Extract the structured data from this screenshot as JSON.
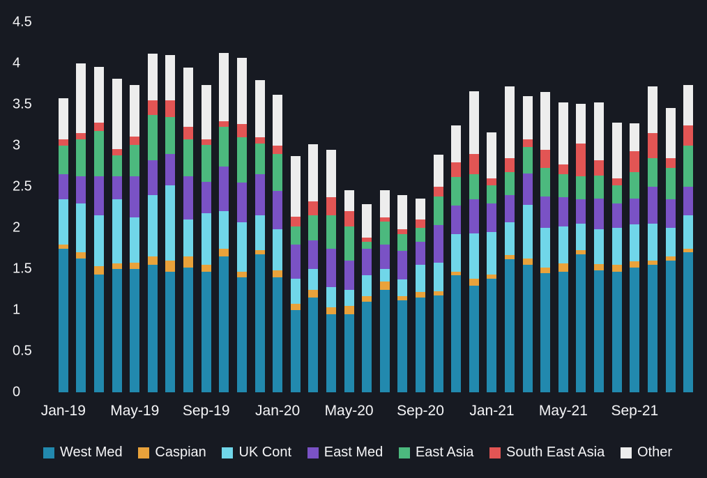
{
  "chart_data": {
    "type": "bar",
    "stacked": true,
    "title": "",
    "xlabel": "",
    "ylabel": "",
    "background": "#171a22",
    "text_color": "#f5f5f7",
    "grid": false,
    "legend_position": "bottom",
    "ylim": [
      0,
      4.5
    ],
    "yticks": [
      "0",
      "0.5",
      "1",
      "1.5",
      "2",
      "2.5",
      "3",
      "3.5",
      "4",
      "4.5"
    ],
    "xticks": [
      "Jan-19",
      "May-19",
      "Sep-19",
      "Jan-20",
      "May-20",
      "Sep-20",
      "Jan-21",
      "May-21",
      "Sep-21"
    ],
    "categories": [
      "Jan-19",
      "Feb-19",
      "Mar-19",
      "Apr-19",
      "May-19",
      "Jun-19",
      "Jul-19",
      "Aug-19",
      "Sep-19",
      "Oct-19",
      "Nov-19",
      "Dec-19",
      "Jan-20",
      "Feb-20",
      "Mar-20",
      "Apr-20",
      "May-20",
      "Jun-20",
      "Jul-20",
      "Aug-20",
      "Sep-20",
      "Oct-20",
      "Nov-20",
      "Dec-20",
      "Jan-21",
      "Feb-21",
      "Mar-21",
      "Apr-21",
      "May-21",
      "Jun-21",
      "Jul-21",
      "Aug-21",
      "Sep-21",
      "Oct-21",
      "Nov-21",
      "Dec-21"
    ],
    "series": [
      {
        "name": "West Med",
        "color": "#2289ae",
        "values": [
          1.75,
          1.63,
          1.43,
          1.5,
          1.5,
          1.55,
          1.47,
          1.52,
          1.47,
          1.65,
          1.4,
          1.68,
          1.4,
          1.0,
          1.15,
          0.95,
          0.95,
          1.1,
          1.25,
          1.12,
          1.15,
          1.18,
          1.42,
          1.3,
          1.38,
          1.62,
          1.55,
          1.45,
          1.47,
          1.68,
          1.48,
          1.47,
          1.52,
          1.55,
          1.6,
          1.7
        ]
      },
      {
        "name": "Caspian",
        "color": "#e9a23b",
        "values": [
          0.05,
          0.07,
          0.1,
          0.07,
          0.08,
          0.1,
          0.13,
          0.13,
          0.08,
          0.1,
          0.07,
          0.05,
          0.08,
          0.08,
          0.1,
          0.08,
          0.1,
          0.07,
          0.1,
          0.05,
          0.07,
          0.05,
          0.05,
          0.08,
          0.05,
          0.05,
          0.08,
          0.07,
          0.1,
          0.05,
          0.08,
          0.08,
          0.07,
          0.05,
          0.05,
          0.05
        ]
      },
      {
        "name": "UK Cont",
        "color": "#70d6e9",
        "values": [
          0.55,
          0.6,
          0.62,
          0.78,
          0.55,
          0.75,
          0.92,
          0.45,
          0.63,
          0.45,
          0.6,
          0.42,
          0.5,
          0.3,
          0.25,
          0.25,
          0.2,
          0.25,
          0.15,
          0.2,
          0.33,
          0.35,
          0.45,
          0.55,
          0.52,
          0.4,
          0.65,
          0.48,
          0.45,
          0.32,
          0.42,
          0.45,
          0.45,
          0.45,
          0.35,
          0.4
        ]
      },
      {
        "name": "East Med",
        "color": "#7a52c5",
        "values": [
          0.3,
          0.33,
          0.48,
          0.28,
          0.5,
          0.42,
          0.38,
          0.53,
          0.38,
          0.55,
          0.48,
          0.5,
          0.47,
          0.42,
          0.35,
          0.47,
          0.35,
          0.33,
          0.3,
          0.35,
          0.28,
          0.45,
          0.35,
          0.42,
          0.35,
          0.33,
          0.38,
          0.38,
          0.35,
          0.3,
          0.38,
          0.3,
          0.32,
          0.45,
          0.35,
          0.35
        ]
      },
      {
        "name": "East Asia",
        "color": "#4cb97e",
        "values": [
          0.35,
          0.45,
          0.55,
          0.25,
          0.38,
          0.55,
          0.45,
          0.45,
          0.45,
          0.48,
          0.55,
          0.38,
          0.45,
          0.22,
          0.3,
          0.4,
          0.42,
          0.08,
          0.28,
          0.2,
          0.17,
          0.35,
          0.35,
          0.3,
          0.22,
          0.28,
          0.32,
          0.35,
          0.28,
          0.28,
          0.28,
          0.22,
          0.32,
          0.35,
          0.38,
          0.5
        ]
      },
      {
        "name": "South East Asia",
        "color": "#e25554",
        "values": [
          0.08,
          0.07,
          0.1,
          0.08,
          0.1,
          0.18,
          0.2,
          0.15,
          0.07,
          0.07,
          0.16,
          0.07,
          0.1,
          0.12,
          0.17,
          0.22,
          0.18,
          0.05,
          0.05,
          0.06,
          0.1,
          0.12,
          0.18,
          0.25,
          0.08,
          0.17,
          0.1,
          0.22,
          0.12,
          0.4,
          0.18,
          0.08,
          0.25,
          0.3,
          0.12,
          0.25
        ]
      },
      {
        "name": "Other",
        "color": "#ededed",
        "values": [
          0.5,
          0.85,
          0.68,
          0.85,
          0.63,
          0.57,
          0.55,
          0.72,
          0.66,
          0.83,
          0.81,
          0.7,
          0.62,
          0.73,
          0.7,
          0.58,
          0.26,
          0.41,
          0.33,
          0.42,
          0.26,
          0.39,
          0.45,
          0.76,
          0.56,
          0.87,
          0.52,
          0.7,
          0.76,
          0.48,
          0.71,
          0.68,
          0.34,
          0.57,
          0.61,
          0.49
        ]
      }
    ]
  }
}
